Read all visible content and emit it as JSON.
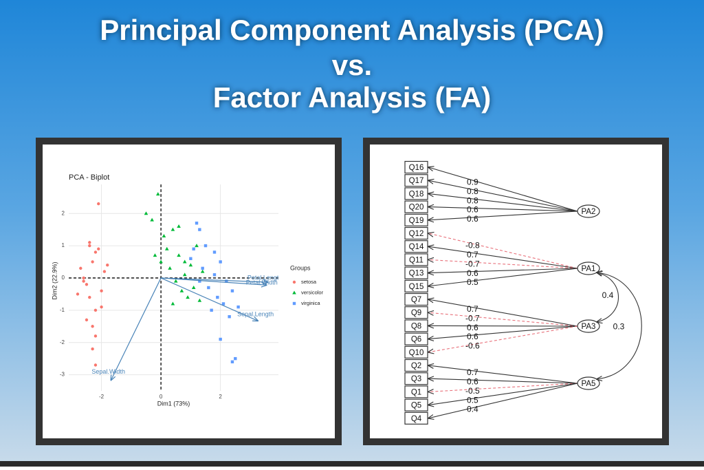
{
  "header": {
    "title_lines": [
      "Principal Component Analysis (PCA)",
      "vs.",
      "Factor Analysis (FA)"
    ]
  },
  "chart_data": [
    {
      "type": "scatter",
      "title": "PCA - Biplot",
      "x_label": "Dim1 (73%)",
      "y_label": "Dim2 (22.9%)",
      "xlim": [
        -3.1,
        3.95
      ],
      "ylim": [
        -3.5,
        2.9
      ],
      "xticks": [
        -2,
        0,
        2
      ],
      "yticks": [
        -3,
        -2,
        -1,
        0,
        1,
        2
      ],
      "grid": true,
      "legend_title": "Groups",
      "series": [
        {
          "name": "setosa",
          "color": "#f8766d",
          "marker": "circle",
          "x": [
            -2.7,
            -2.4,
            -2.2,
            -2.5,
            -2.3,
            -2.0,
            -2.6,
            -2.1,
            -2.4,
            -2.2,
            -1.9,
            -2.5,
            -2.3,
            -2.0,
            -2.8,
            -2.2,
            -2.4,
            -2.1,
            -2.3,
            -1.8,
            -2.2,
            -2.6
          ],
          "values": [
            0.3,
            1.1,
            0.8,
            -0.2,
            0.5,
            -0.4,
            0.0,
            0.9,
            -0.6,
            -1.0,
            0.2,
            -1.3,
            -1.5,
            -0.9,
            -0.5,
            -1.8,
            1.0,
            2.3,
            -2.2,
            0.4,
            -2.7,
            -0.1
          ]
        },
        {
          "name": "versicolor",
          "color": "#00ba38",
          "marker": "triangle",
          "x": [
            -0.5,
            -0.3,
            0.1,
            0.4,
            0.2,
            0.6,
            0.8,
            0.3,
            -0.1,
            0.5,
            1.0,
            1.2,
            0.7,
            0.9,
            1.4,
            0.4,
            1.1,
            0.0,
            0.6,
            1.3,
            0.8,
            -0.2
          ],
          "values": [
            2.0,
            1.8,
            1.3,
            1.5,
            0.9,
            0.7,
            0.5,
            0.3,
            2.6,
            -0.1,
            0.4,
            1.0,
            -0.4,
            -0.6,
            0.2,
            -0.8,
            -0.3,
            0.5,
            1.6,
            -0.7,
            0.1,
            0.7
          ]
        },
        {
          "name": "virginica",
          "color": "#619cff",
          "marker": "square",
          "x": [
            1.2,
            1.3,
            1.5,
            1.8,
            2.0,
            2.2,
            1.6,
            1.9,
            2.4,
            2.5,
            1.4,
            1.7,
            2.1,
            2.3,
            1.0,
            1.3,
            2.6,
            2.0,
            1.8,
            1.1,
            2.4
          ],
          "values": [
            1.7,
            1.5,
            1.0,
            0.8,
            0.5,
            -0.1,
            -0.3,
            -0.6,
            -0.4,
            -2.5,
            0.3,
            -1.0,
            -0.8,
            -1.2,
            0.6,
            -0.1,
            -0.9,
            -1.9,
            0.1,
            0.9,
            -2.6
          ]
        }
      ],
      "arrows": [
        {
          "label": "Petal.Length",
          "color": "#4a84b8",
          "x": 3.6,
          "y": -0.13
        },
        {
          "label": "Petal.Width",
          "color": "#4a84b8",
          "x": 3.55,
          "y": -0.22
        },
        {
          "label": "Sepal.Length",
          "color": "#4a84b8",
          "x": 3.26,
          "y": -1.33
        },
        {
          "label": "Sepal.Width",
          "color": "#4a84b8",
          "x": -1.68,
          "y": -3.17
        }
      ]
    }
  ],
  "diagram": {
    "indicators": [
      "Q16",
      "Q17",
      "Q18",
      "Q20",
      "Q19",
      "Q12",
      "Q14",
      "Q11",
      "Q13",
      "Q15",
      "Q7",
      "Q9",
      "Q8",
      "Q6",
      "Q10",
      "Q2",
      "Q3",
      "Q1",
      "Q5",
      "Q4"
    ],
    "factors": [
      {
        "name": "PA2",
        "loadings": [
          {
            "item": "Q16",
            "value": 0.9
          },
          {
            "item": "Q17",
            "value": 0.8
          },
          {
            "item": "Q18",
            "value": 0.8
          },
          {
            "item": "Q20",
            "value": 0.6
          },
          {
            "item": "Q19",
            "value": 0.6
          }
        ]
      },
      {
        "name": "PA1",
        "loadings": [
          {
            "item": "Q12",
            "value": -0.8
          },
          {
            "item": "Q14",
            "value": 0.7
          },
          {
            "item": "Q11",
            "value": -0.7
          },
          {
            "item": "Q13",
            "value": 0.6
          },
          {
            "item": "Q15",
            "value": 0.5
          }
        ]
      },
      {
        "name": "PA3",
        "loadings": [
          {
            "item": "Q7",
            "value": 0.7
          },
          {
            "item": "Q9",
            "value": -0.7
          },
          {
            "item": "Q8",
            "value": 0.6
          },
          {
            "item": "Q6",
            "value": 0.6
          },
          {
            "item": "Q10",
            "value": -0.6
          }
        ]
      },
      {
        "name": "PA5",
        "loadings": [
          {
            "item": "Q2",
            "value": 0.7
          },
          {
            "item": "Q3",
            "value": 0.6
          },
          {
            "item": "Q1",
            "value": -0.5
          },
          {
            "item": "Q5",
            "value": 0.5
          },
          {
            "item": "Q4",
            "value": 0.4
          }
        ]
      }
    ],
    "correlations": [
      {
        "from": "PA1",
        "to": "PA3",
        "value": 0.4
      },
      {
        "from": "PA1",
        "to": "PA5",
        "value": 0.3
      }
    ]
  }
}
